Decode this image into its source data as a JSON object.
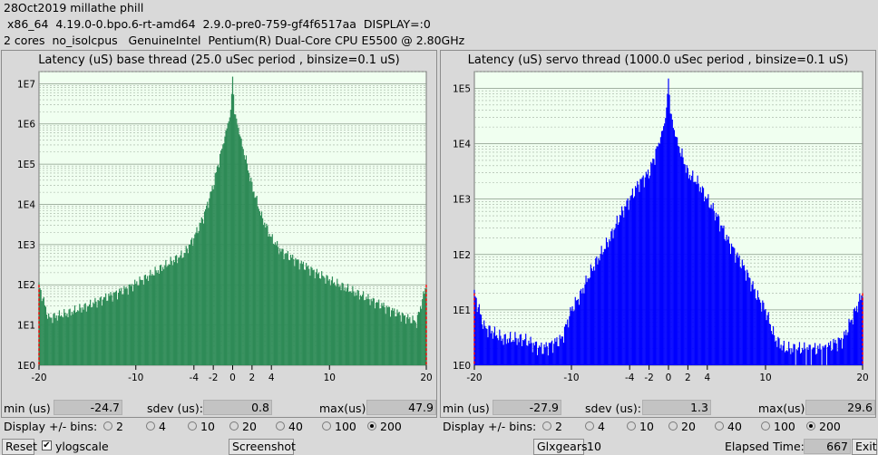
{
  "header": {
    "line1": "28Oct2019 millathe phill",
    "line2": " x86_64  4.19.0-0.bpo.6-rt-amd64  2.9.0-pre0-759-gf4f6517aa  DISPLAY=:0",
    "line3": "2 cores  no_isolcpus   GenuineIntel  Pentium(R) Dual-Core CPU E5500 @ 2.80GHz"
  },
  "base": {
    "title": "Latency (uS) base thread (25.0 uSec period , binsize=0.1 uS)",
    "min_label": "min (us)",
    "min": "-24.7",
    "sdev_label": "sdev (us):",
    "sdev": "0.8",
    "max_label": "max(us)",
    "max": "47.9",
    "bins_label": "Display +/- bins:"
  },
  "servo": {
    "title": "Latency (uS) servo thread (1000.0 uSec period , binsize=0.1 uS)",
    "min_label": "min (us)",
    "min": "-27.9",
    "sdev_label": "sdev (us):",
    "sdev": "1.3",
    "max_label": "max(us)",
    "max": "29.6",
    "bins_label": "Display +/- bins:"
  },
  "bin_options": [
    "2",
    "4",
    "10",
    "20",
    "40",
    "100",
    "200"
  ],
  "bin_selected": "200",
  "footer": {
    "reset": "Reset",
    "ylogscale": "ylogscale",
    "ylogscale_checked": true,
    "screenshot": "Screenshot",
    "glxgears": "Glxgears",
    "glxgears_value": "10",
    "elapsed_label": "Elapsed Time:",
    "elapsed_value": "667",
    "exit": "Exit"
  },
  "colors": {
    "base_bars": "#2e8b57",
    "servo_bars": "#0000ff",
    "plot_bg": "#f0fff0",
    "edge_marker": "#ff0000"
  },
  "chart_data": [
    {
      "type": "bar",
      "title": "Latency (uS) base thread (25.0 uSec period , binsize=0.1 uS)",
      "x_ticks": [
        "-20",
        "-10",
        "-4",
        "-2",
        "0",
        "2",
        "4",
        "10",
        "20"
      ],
      "y_ticks": [
        "1E0",
        "1E1",
        "1E2",
        "1E3",
        "1E4",
        "1E5",
        "1E6",
        "1E7"
      ],
      "xlim": [
        -20,
        20
      ],
      "ylog": true,
      "ylim": [
        1,
        20000000
      ],
      "x": [
        -20,
        -19,
        -17,
        -15,
        -13,
        -11,
        -9,
        -7,
        -5,
        -4,
        -3,
        -2,
        -1.5,
        -1,
        -0.5,
        -0.2,
        0,
        0.2,
        0.5,
        1,
        1.5,
        2,
        3,
        4,
        5,
        7,
        9,
        11,
        13,
        15,
        17,
        19,
        20
      ],
      "values": [
        100,
        15,
        20,
        30,
        50,
        80,
        150,
        300,
        600,
        1500,
        5000,
        30000,
        100000,
        300000,
        1000000,
        2000000,
        15000000,
        2000000,
        1000000,
        300000,
        100000,
        30000,
        5000,
        1500,
        700,
        350,
        180,
        100,
        60,
        35,
        20,
        12,
        100
      ]
    },
    {
      "type": "bar",
      "title": "Latency (uS) servo thread (1000.0 uSec period , binsize=0.1 uS)",
      "x_ticks": [
        "-20",
        "-10",
        "-4",
        "-2",
        "0",
        "2",
        "4",
        "10",
        "20"
      ],
      "y_ticks": [
        "1E0",
        "1E1",
        "1E2",
        "1E3",
        "1E4",
        "1E5"
      ],
      "xlim": [
        -20,
        20
      ],
      "ylog": true,
      "ylim": [
        1,
        200000
      ],
      "x": [
        -20,
        -19,
        -17,
        -15,
        -13,
        -11,
        -10,
        -9,
        -8,
        -7,
        -6,
        -5,
        -4,
        -3,
        -2,
        -1,
        -0.5,
        -0.2,
        0,
        0.2,
        0.5,
        1,
        2,
        3,
        4,
        5,
        6,
        7,
        8,
        9,
        10,
        11,
        12,
        14,
        16,
        18,
        20
      ],
      "values": [
        20,
        5,
        3,
        3,
        2,
        3,
        10,
        20,
        50,
        100,
        200,
        500,
        1000,
        2000,
        3000,
        10000,
        20000,
        40000,
        150000,
        40000,
        20000,
        10000,
        3000,
        2000,
        1000,
        500,
        200,
        100,
        50,
        20,
        10,
        3,
        2,
        2,
        2,
        3,
        20
      ]
    }
  ]
}
